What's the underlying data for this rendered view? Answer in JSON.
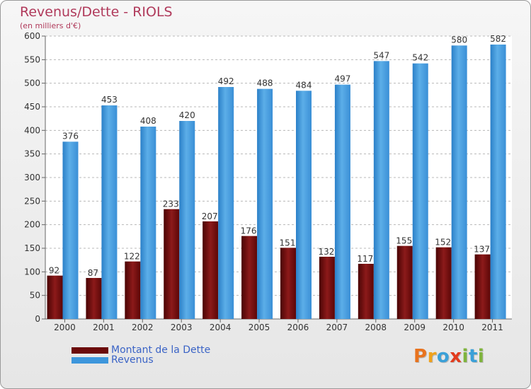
{
  "title": "Revenus/Dette - RIOLS",
  "subtitle": "(en milliers d'€)",
  "colors": {
    "dette": "#6b0a0a",
    "revenus": "#3d96dc",
    "axis_text": "#333333"
  },
  "logo": {
    "text": "Proxiti",
    "letters": [
      {
        "ch": "P",
        "color": "#e8731e"
      },
      {
        "ch": "r",
        "color": "#f0a21c"
      },
      {
        "ch": "o",
        "color": "#3aa0d8"
      },
      {
        "ch": "x",
        "color": "#e23b1d"
      },
      {
        "ch": "i",
        "color": "#7fb43d"
      },
      {
        "ch": "t",
        "color": "#3aa0d8"
      },
      {
        "ch": "i",
        "color": "#7fb43d"
      }
    ]
  },
  "chart_data": {
    "type": "bar",
    "title": "Revenus/Dette - RIOLS",
    "ylabel": "(en milliers d'€)",
    "categories": [
      "2000",
      "2001",
      "2002",
      "2003",
      "2004",
      "2005",
      "2006",
      "2007",
      "2008",
      "2009",
      "2010",
      "2011"
    ],
    "series": [
      {
        "name": "Montant de la Dette",
        "values": [
          92,
          87,
          122,
          233,
          207,
          176,
          151,
          132,
          117,
          155,
          152,
          137
        ]
      },
      {
        "name": "Revenus",
        "values": [
          376,
          453,
          408,
          420,
          492,
          488,
          484,
          497,
          547,
          542,
          580,
          582
        ]
      }
    ],
    "ylim": [
      0,
      600
    ],
    "yticks": [
      0,
      50,
      100,
      150,
      200,
      250,
      300,
      350,
      400,
      450,
      500,
      550,
      600
    ],
    "grid": true,
    "legend": "bottom-left"
  }
}
